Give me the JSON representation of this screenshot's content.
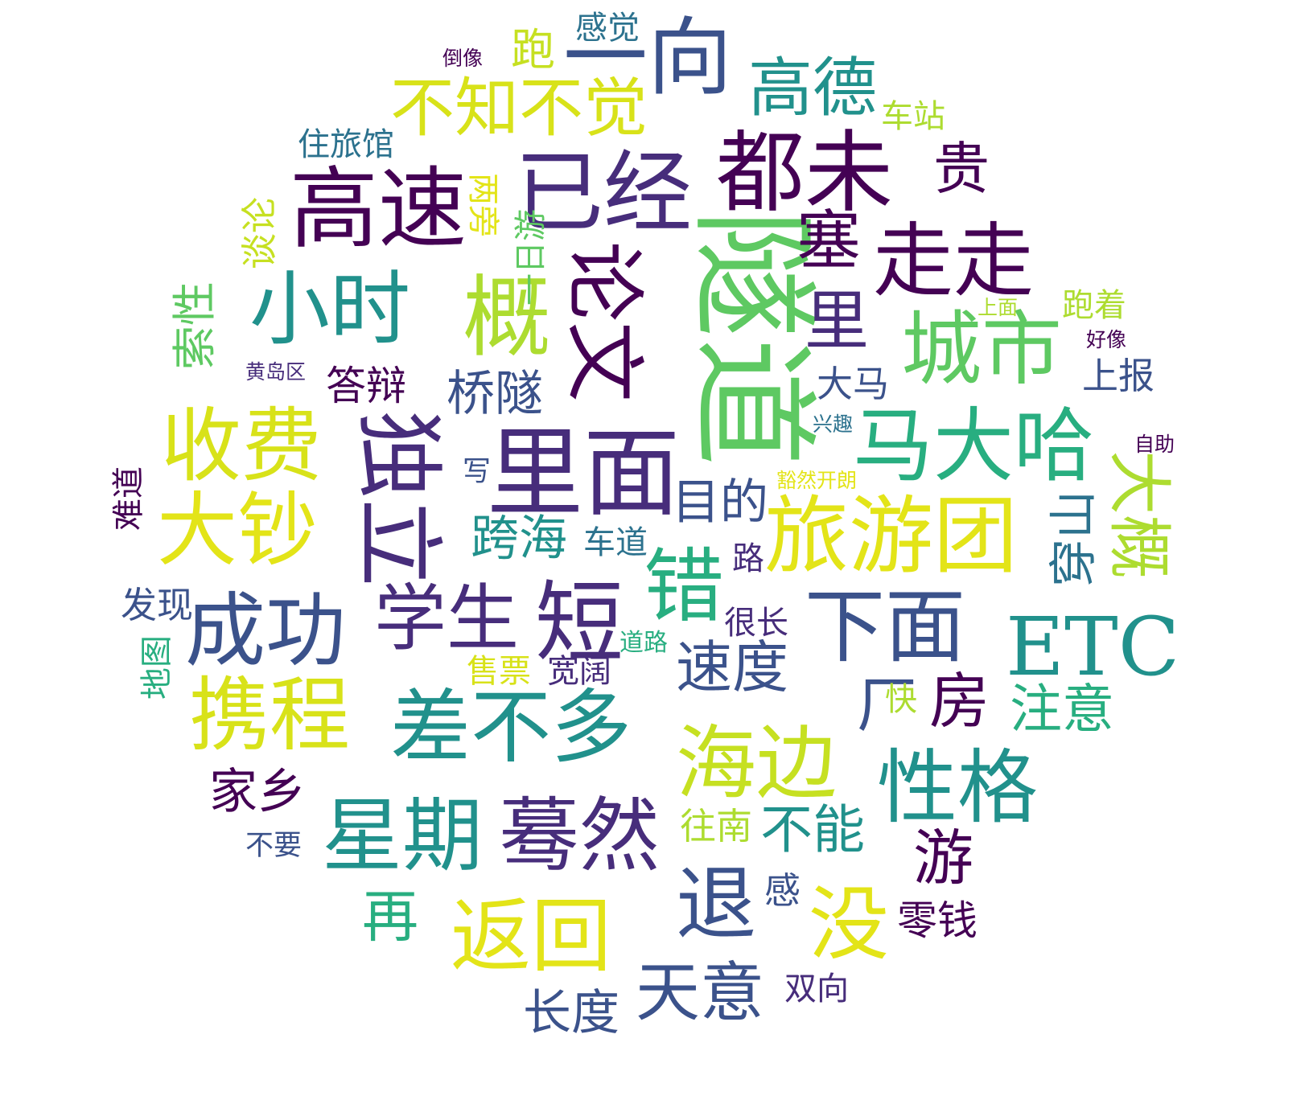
{
  "palette": {
    "purple": "#440154",
    "indigo": "#472d7b",
    "blue": "#3b528b",
    "slate": "#2c728e",
    "teal": "#21918c",
    "green": "#28ae80",
    "lime": "#5ec962",
    "yellowgreen": "#addc30",
    "yellow": "#e3e418"
  },
  "words": [
    {
      "text": "隧道",
      "color": "#5ec962"
    },
    {
      "text": "里面",
      "color": "#472d7b"
    },
    {
      "text": "已经",
      "color": "#472d7b"
    },
    {
      "text": "都未",
      "color": "#440154"
    },
    {
      "text": "高速",
      "color": "#440154"
    },
    {
      "text": "城市",
      "color": "#5ec962"
    },
    {
      "text": "马大哈",
      "color": "#28ae80"
    },
    {
      "text": "论文",
      "color": "#440154"
    },
    {
      "text": "独立",
      "color": "#472d7b"
    },
    {
      "text": "旅游团",
      "color": "#e3e418"
    },
    {
      "text": "ETC",
      "color": "#21918c"
    },
    {
      "text": "下面",
      "color": "#3b528b"
    },
    {
      "text": "差不多",
      "color": "#21918c"
    },
    {
      "text": "海边",
      "color": "#c6e021"
    },
    {
      "text": "星期",
      "color": "#21918c"
    },
    {
      "text": "蓦然",
      "color": "#472d7b"
    },
    {
      "text": "返回",
      "color": "#e3e418"
    },
    {
      "text": "退",
      "color": "#3b528b"
    },
    {
      "text": "没",
      "color": "#e3e418"
    },
    {
      "text": "性格",
      "color": "#21918c"
    },
    {
      "text": "携程",
      "color": "#d8e219"
    },
    {
      "text": "成功",
      "color": "#3b528b"
    },
    {
      "text": "学生",
      "color": "#472d7b"
    },
    {
      "text": "短",
      "color": "#472d7b"
    },
    {
      "text": "错",
      "color": "#28ae80"
    },
    {
      "text": "收费",
      "color": "#d8e219"
    },
    {
      "text": "大钞",
      "color": "#e3e418"
    },
    {
      "text": "小时",
      "color": "#21918c"
    },
    {
      "text": "概",
      "color": "#addc30"
    },
    {
      "text": "一向",
      "color": "#3b528b"
    },
    {
      "text": "不知不觉",
      "color": "#d8e219"
    },
    {
      "text": "高德",
      "color": "#21918c"
    },
    {
      "text": "塞",
      "color": "#440154"
    },
    {
      "text": "走走",
      "color": "#440154"
    },
    {
      "text": "里",
      "color": "#472d7b"
    },
    {
      "text": "大概",
      "color": "#addc30"
    },
    {
      "text": "穿山",
      "color": "#2c728e"
    },
    {
      "text": "注意",
      "color": "#28ae80"
    },
    {
      "text": "速度",
      "color": "#3b528b"
    },
    {
      "text": "目的",
      "color": "#3b528b"
    },
    {
      "text": "桥隧",
      "color": "#3b528b"
    },
    {
      "text": "跨海",
      "color": "#21918c"
    },
    {
      "text": "车道",
      "color": "#2c728e"
    },
    {
      "text": "答辩",
      "color": "#440154"
    },
    {
      "text": "索性",
      "color": "#5ec962"
    },
    {
      "text": "谈论",
      "color": "#c6e021"
    },
    {
      "text": "跑",
      "color": "#c6e021"
    },
    {
      "text": "感觉",
      "color": "#2c728e"
    },
    {
      "text": "倒像",
      "color": "#440154"
    },
    {
      "text": "贵",
      "color": "#440154"
    },
    {
      "text": "车站",
      "color": "#addc30"
    },
    {
      "text": "住旅馆",
      "color": "#2c728e"
    },
    {
      "text": "两旁",
      "color": "#e3e418"
    },
    {
      "text": "一日游",
      "color": "#5ec962"
    },
    {
      "text": "大马",
      "color": "#3b528b"
    },
    {
      "text": "上报",
      "color": "#3b528b"
    },
    {
      "text": "跑着",
      "color": "#addc30"
    },
    {
      "text": "上面",
      "color": "#addc30"
    },
    {
      "text": "好像",
      "color": "#440154"
    },
    {
      "text": "兴趣",
      "color": "#2c728e"
    },
    {
      "text": "自助",
      "color": "#440154"
    },
    {
      "text": "豁然开朗",
      "color": "#e3e418"
    },
    {
      "text": "黄岛区",
      "color": "#472d7b"
    },
    {
      "text": "写",
      "color": "#3b528b"
    },
    {
      "text": "路",
      "color": "#472d7b"
    },
    {
      "text": "很长",
      "color": "#472d7b"
    },
    {
      "text": "难道",
      "color": "#440154"
    },
    {
      "text": "发现",
      "color": "#3b528b"
    },
    {
      "text": "地图",
      "color": "#28ae80"
    },
    {
      "text": "道路",
      "color": "#28ae80"
    },
    {
      "text": "售票",
      "color": "#d8e219"
    },
    {
      "text": "宽阔",
      "color": "#472d7b"
    },
    {
      "text": "厂",
      "color": "#3b528b"
    },
    {
      "text": "快",
      "color": "#addc30"
    },
    {
      "text": "房",
      "color": "#440154"
    },
    {
      "text": "家乡",
      "color": "#440154"
    },
    {
      "text": "不要",
      "color": "#3b528b"
    },
    {
      "text": "往南",
      "color": "#addc30"
    },
    {
      "text": "不能",
      "color": "#21918c"
    },
    {
      "text": "游",
      "color": "#440154"
    },
    {
      "text": "再",
      "color": "#28ae80"
    },
    {
      "text": "感",
      "color": "#3b528b"
    },
    {
      "text": "零钱",
      "color": "#440154"
    },
    {
      "text": "长度",
      "color": "#3b528b"
    },
    {
      "text": "天意",
      "color": "#3b528b"
    },
    {
      "text": "双向",
      "color": "#472d7b"
    }
  ]
}
